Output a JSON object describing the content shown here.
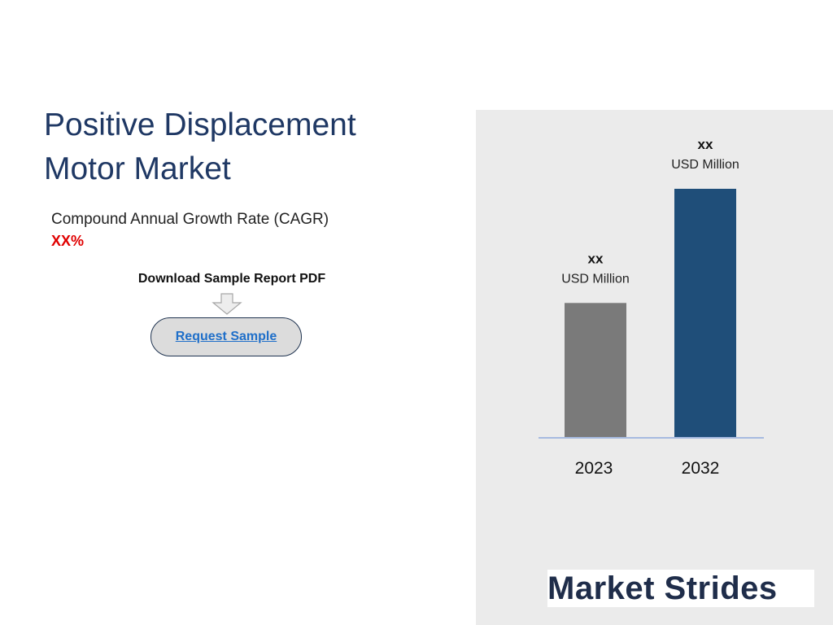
{
  "header": {
    "title_line1": "Positive Displacement",
    "title_line2": "Motor Market"
  },
  "cagr": {
    "label": "Compound Annual Growth Rate (CAGR)",
    "value": "XX%"
  },
  "download": {
    "label": "Download Sample Report PDF",
    "button_label": "Request Sample"
  },
  "logo": {
    "text": "Market Strides"
  },
  "chart_data": {
    "type": "bar",
    "title": "",
    "xlabel": "",
    "ylabel": "",
    "categories": [
      "2023",
      "2032"
    ],
    "values": [
      54,
      100
    ],
    "value_labels": [
      "xx",
      "xx"
    ],
    "unit_labels": [
      "USD Million",
      "USD Million"
    ],
    "colors": [
      "#7a7a7a",
      "#1f4e79"
    ],
    "ylim": [
      0,
      100
    ],
    "grid": false,
    "legend": "none"
  },
  "colors": {
    "title": "#1f3864",
    "cagr_value": "#e00000",
    "panel_background": "#ebebeb",
    "baseline": "#8faadc",
    "button_link": "#1f6fc9"
  },
  "icons": {
    "download_arrow": "down-arrow-icon"
  }
}
